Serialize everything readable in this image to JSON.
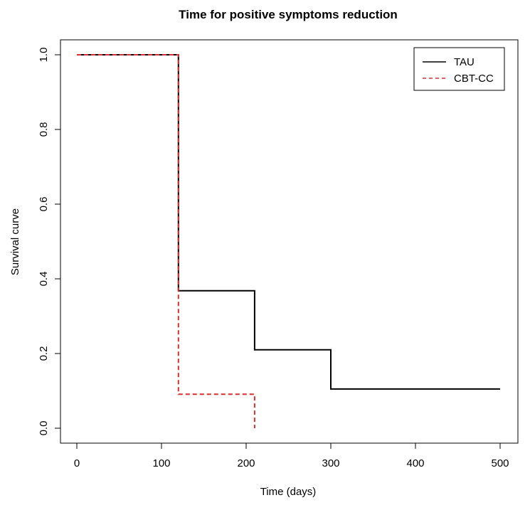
{
  "chart_data": {
    "type": "line",
    "step": true,
    "title": "Time for positive symptoms reduction",
    "xlabel": "Time (days)",
    "ylabel": "Survival curve",
    "xlim": [
      0,
      500
    ],
    "ylim": [
      0,
      1.0
    ],
    "x_ticks": [
      0,
      100,
      200,
      300,
      400,
      500
    ],
    "x_tick_labels": [
      "0",
      "100",
      "200",
      "300",
      "400",
      "500"
    ],
    "y_ticks": [
      0.0,
      0.2,
      0.4,
      0.6,
      0.8,
      1.0
    ],
    "y_tick_labels": [
      "0.0",
      "0.2",
      "0.4",
      "0.6",
      "0.8",
      "1.0"
    ],
    "grid": false,
    "legend_position": "top-right",
    "series": [
      {
        "name": "TAU",
        "color": "#000000",
        "line_style": "solid",
        "x": [
          0,
          120,
          210,
          300,
          500
        ],
        "y": [
          1.0,
          0.368,
          0.21,
          0.105,
          0.105
        ]
      },
      {
        "name": "CBT-CC",
        "color": "#d62f2f",
        "line_style": "dashed",
        "x": [
          0,
          120,
          210
        ],
        "y": [
          1.0,
          0.091,
          0.0
        ]
      }
    ]
  }
}
